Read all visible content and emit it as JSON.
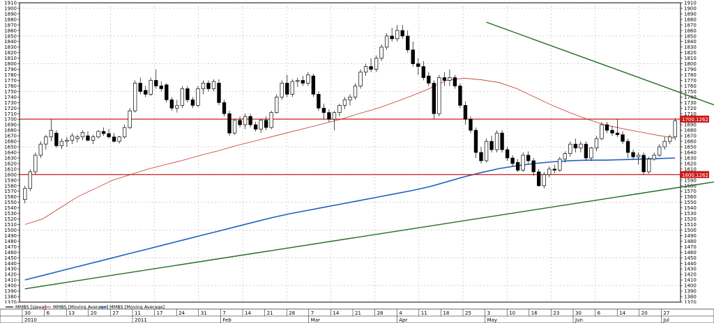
{
  "chart_data": {
    "type": "candlestick",
    "instrument": "MMBS",
    "y_range": [
      1370,
      1910
    ],
    "y_ticks": [
      1370,
      1380,
      1390,
      1400,
      1410,
      1420,
      1430,
      1440,
      1450,
      1460,
      1470,
      1480,
      1490,
      1500,
      1510,
      1520,
      1530,
      1540,
      1550,
      1560,
      1570,
      1580,
      1590,
      1600,
      1610,
      1620,
      1630,
      1640,
      1650,
      1660,
      1670,
      1680,
      1690,
      1700,
      1710,
      1720,
      1730,
      1740,
      1750,
      1760,
      1770,
      1780,
      1790,
      1800,
      1810,
      1820,
      1830,
      1840,
      1850,
      1860,
      1870,
      1880,
      1890,
      1900,
      1910
    ],
    "x_day_labels": [
      "30",
      "6",
      "13",
      "20",
      "27",
      "11",
      "17",
      "24",
      "31",
      "7",
      "14",
      "21",
      "28",
      "7",
      "14",
      "21",
      "28",
      "4",
      "11",
      "18",
      "25",
      "3",
      "10",
      "16",
      "23",
      "30",
      "6",
      "14",
      "20",
      "27"
    ],
    "month_labels": [
      "2010",
      "2011",
      "Feb",
      "Mar",
      "Apr",
      "May",
      "Jun",
      "Jul"
    ],
    "legend": [
      {
        "label": "MMBS [Цена]",
        "color": "#000000"
      },
      {
        "label": "MMBS [Moving Average]",
        "color": "#c0392b"
      },
      {
        "label": "MMBS [Moving Average]",
        "color": "#1f5fbf"
      }
    ],
    "candles": [
      {
        "o": 1555,
        "h": 1580,
        "l": 1548,
        "c": 1575
      },
      {
        "o": 1575,
        "h": 1610,
        "l": 1570,
        "c": 1605
      },
      {
        "o": 1605,
        "h": 1640,
        "l": 1600,
        "c": 1635
      },
      {
        "o": 1635,
        "h": 1660,
        "l": 1630,
        "c": 1655
      },
      {
        "o": 1655,
        "h": 1672,
        "l": 1645,
        "c": 1668
      },
      {
        "o": 1668,
        "h": 1700,
        "l": 1660,
        "c": 1680
      },
      {
        "o": 1675,
        "h": 1680,
        "l": 1648,
        "c": 1652
      },
      {
        "o": 1652,
        "h": 1665,
        "l": 1646,
        "c": 1660
      },
      {
        "o": 1660,
        "h": 1668,
        "l": 1650,
        "c": 1662
      },
      {
        "o": 1662,
        "h": 1675,
        "l": 1655,
        "c": 1670
      },
      {
        "o": 1665,
        "h": 1672,
        "l": 1658,
        "c": 1668
      },
      {
        "o": 1668,
        "h": 1680,
        "l": 1662,
        "c": 1676
      },
      {
        "o": 1670,
        "h": 1678,
        "l": 1660,
        "c": 1662
      },
      {
        "o": 1662,
        "h": 1672,
        "l": 1655,
        "c": 1668
      },
      {
        "o": 1668,
        "h": 1680,
        "l": 1665,
        "c": 1678
      },
      {
        "o": 1678,
        "h": 1685,
        "l": 1670,
        "c": 1674
      },
      {
        "o": 1674,
        "h": 1682,
        "l": 1665,
        "c": 1668
      },
      {
        "o": 1668,
        "h": 1675,
        "l": 1658,
        "c": 1660
      },
      {
        "o": 1660,
        "h": 1670,
        "l": 1656,
        "c": 1668
      },
      {
        "o": 1668,
        "h": 1690,
        "l": 1665,
        "c": 1685
      },
      {
        "o": 1685,
        "h": 1720,
        "l": 1682,
        "c": 1715
      },
      {
        "o": 1715,
        "h": 1770,
        "l": 1712,
        "c": 1765
      },
      {
        "o": 1765,
        "h": 1775,
        "l": 1745,
        "c": 1750
      },
      {
        "o": 1752,
        "h": 1760,
        "l": 1740,
        "c": 1745
      },
      {
        "o": 1745,
        "h": 1775,
        "l": 1742,
        "c": 1770
      },
      {
        "o": 1770,
        "h": 1790,
        "l": 1755,
        "c": 1760
      },
      {
        "o": 1760,
        "h": 1768,
        "l": 1750,
        "c": 1755
      },
      {
        "o": 1762,
        "h": 1765,
        "l": 1730,
        "c": 1735
      },
      {
        "o": 1735,
        "h": 1740,
        "l": 1715,
        "c": 1720
      },
      {
        "o": 1720,
        "h": 1735,
        "l": 1712,
        "c": 1725
      },
      {
        "o": 1725,
        "h": 1760,
        "l": 1720,
        "c": 1755
      },
      {
        "o": 1755,
        "h": 1760,
        "l": 1730,
        "c": 1735
      },
      {
        "o": 1735,
        "h": 1740,
        "l": 1720,
        "c": 1725
      },
      {
        "o": 1725,
        "h": 1760,
        "l": 1722,
        "c": 1755
      },
      {
        "o": 1755,
        "h": 1770,
        "l": 1745,
        "c": 1765
      },
      {
        "o": 1765,
        "h": 1770,
        "l": 1750,
        "c": 1755
      },
      {
        "o": 1755,
        "h": 1772,
        "l": 1750,
        "c": 1768
      },
      {
        "o": 1765,
        "h": 1772,
        "l": 1725,
        "c": 1730
      },
      {
        "o": 1730,
        "h": 1735,
        "l": 1705,
        "c": 1710
      },
      {
        "o": 1710,
        "h": 1715,
        "l": 1670,
        "c": 1675
      },
      {
        "o": 1675,
        "h": 1700,
        "l": 1672,
        "c": 1698
      },
      {
        "o": 1698,
        "h": 1705,
        "l": 1685,
        "c": 1690
      },
      {
        "o": 1690,
        "h": 1710,
        "l": 1682,
        "c": 1705
      },
      {
        "o": 1705,
        "h": 1710,
        "l": 1685,
        "c": 1690
      },
      {
        "o": 1690,
        "h": 1695,
        "l": 1678,
        "c": 1682
      },
      {
        "o": 1682,
        "h": 1700,
        "l": 1675,
        "c": 1698
      },
      {
        "o": 1698,
        "h": 1705,
        "l": 1680,
        "c": 1685
      },
      {
        "o": 1685,
        "h": 1715,
        "l": 1682,
        "c": 1712
      },
      {
        "o": 1712,
        "h": 1745,
        "l": 1710,
        "c": 1740
      },
      {
        "o": 1740,
        "h": 1770,
        "l": 1735,
        "c": 1765
      },
      {
        "o": 1765,
        "h": 1780,
        "l": 1740,
        "c": 1745
      },
      {
        "o": 1745,
        "h": 1772,
        "l": 1740,
        "c": 1768
      },
      {
        "o": 1768,
        "h": 1775,
        "l": 1758,
        "c": 1770
      },
      {
        "o": 1770,
        "h": 1778,
        "l": 1760,
        "c": 1765
      },
      {
        "o": 1765,
        "h": 1785,
        "l": 1760,
        "c": 1780
      },
      {
        "o": 1778,
        "h": 1782,
        "l": 1740,
        "c": 1745
      },
      {
        "o": 1745,
        "h": 1750,
        "l": 1715,
        "c": 1720
      },
      {
        "o": 1720,
        "h": 1728,
        "l": 1700,
        "c": 1712
      },
      {
        "o": 1712,
        "h": 1718,
        "l": 1695,
        "c": 1700
      },
      {
        "o": 1700,
        "h": 1715,
        "l": 1680,
        "c": 1712
      },
      {
        "o": 1712,
        "h": 1728,
        "l": 1705,
        "c": 1725
      },
      {
        "o": 1725,
        "h": 1740,
        "l": 1718,
        "c": 1735
      },
      {
        "o": 1735,
        "h": 1745,
        "l": 1725,
        "c": 1740
      },
      {
        "o": 1740,
        "h": 1765,
        "l": 1735,
        "c": 1760
      },
      {
        "o": 1760,
        "h": 1790,
        "l": 1755,
        "c": 1785
      },
      {
        "o": 1785,
        "h": 1800,
        "l": 1778,
        "c": 1795
      },
      {
        "o": 1795,
        "h": 1810,
        "l": 1785,
        "c": 1790
      },
      {
        "o": 1790,
        "h": 1815,
        "l": 1785,
        "c": 1810
      },
      {
        "o": 1810,
        "h": 1835,
        "l": 1805,
        "c": 1830
      },
      {
        "o": 1830,
        "h": 1855,
        "l": 1825,
        "c": 1850
      },
      {
        "o": 1850,
        "h": 1865,
        "l": 1840,
        "c": 1845
      },
      {
        "o": 1845,
        "h": 1870,
        "l": 1840,
        "c": 1860
      },
      {
        "o": 1860,
        "h": 1870,
        "l": 1845,
        "c": 1850
      },
      {
        "o": 1850,
        "h": 1860,
        "l": 1820,
        "c": 1825
      },
      {
        "o": 1825,
        "h": 1840,
        "l": 1795,
        "c": 1800
      },
      {
        "o": 1800,
        "h": 1810,
        "l": 1780,
        "c": 1795
      },
      {
        "o": 1795,
        "h": 1805,
        "l": 1770,
        "c": 1775
      },
      {
        "o": 1778,
        "h": 1785,
        "l": 1760,
        "c": 1765
      },
      {
        "o": 1765,
        "h": 1770,
        "l": 1700,
        "c": 1710
      },
      {
        "o": 1710,
        "h": 1780,
        "l": 1705,
        "c": 1775
      },
      {
        "o": 1775,
        "h": 1785,
        "l": 1760,
        "c": 1770
      },
      {
        "o": 1770,
        "h": 1790,
        "l": 1760,
        "c": 1775
      },
      {
        "o": 1775,
        "h": 1780,
        "l": 1755,
        "c": 1760
      },
      {
        "o": 1760,
        "h": 1765,
        "l": 1720,
        "c": 1725
      },
      {
        "o": 1725,
        "h": 1732,
        "l": 1690,
        "c": 1700
      },
      {
        "o": 1700,
        "h": 1705,
        "l": 1675,
        "c": 1680
      },
      {
        "o": 1680,
        "h": 1685,
        "l": 1630,
        "c": 1640
      },
      {
        "o": 1640,
        "h": 1650,
        "l": 1620,
        "c": 1625
      },
      {
        "o": 1625,
        "h": 1665,
        "l": 1622,
        "c": 1660
      },
      {
        "o": 1660,
        "h": 1670,
        "l": 1640,
        "c": 1645
      },
      {
        "o": 1645,
        "h": 1680,
        "l": 1640,
        "c": 1675
      },
      {
        "o": 1675,
        "h": 1680,
        "l": 1640,
        "c": 1645
      },
      {
        "o": 1645,
        "h": 1650,
        "l": 1625,
        "c": 1630
      },
      {
        "o": 1630,
        "h": 1635,
        "l": 1615,
        "c": 1620
      },
      {
        "o": 1622,
        "h": 1628,
        "l": 1605,
        "c": 1608
      },
      {
        "o": 1608,
        "h": 1640,
        "l": 1605,
        "c": 1635
      },
      {
        "o": 1635,
        "h": 1642,
        "l": 1620,
        "c": 1625
      },
      {
        "o": 1625,
        "h": 1630,
        "l": 1598,
        "c": 1605
      },
      {
        "o": 1605,
        "h": 1610,
        "l": 1578,
        "c": 1580
      },
      {
        "o": 1580,
        "h": 1605,
        "l": 1575,
        "c": 1600
      },
      {
        "o": 1600,
        "h": 1615,
        "l": 1595,
        "c": 1610
      },
      {
        "o": 1610,
        "h": 1618,
        "l": 1602,
        "c": 1608
      },
      {
        "o": 1608,
        "h": 1632,
        "l": 1605,
        "c": 1628
      },
      {
        "o": 1628,
        "h": 1642,
        "l": 1622,
        "c": 1638
      },
      {
        "o": 1638,
        "h": 1660,
        "l": 1632,
        "c": 1655
      },
      {
        "o": 1655,
        "h": 1665,
        "l": 1640,
        "c": 1648
      },
      {
        "o": 1648,
        "h": 1660,
        "l": 1640,
        "c": 1655
      },
      {
        "o": 1655,
        "h": 1660,
        "l": 1625,
        "c": 1630
      },
      {
        "o": 1630,
        "h": 1650,
        "l": 1625,
        "c": 1648
      },
      {
        "o": 1648,
        "h": 1670,
        "l": 1642,
        "c": 1665
      },
      {
        "o": 1665,
        "h": 1695,
        "l": 1662,
        "c": 1690
      },
      {
        "o": 1690,
        "h": 1695,
        "l": 1675,
        "c": 1680
      },
      {
        "o": 1680,
        "h": 1688,
        "l": 1670,
        "c": 1675
      },
      {
        "o": 1675,
        "h": 1700,
        "l": 1668,
        "c": 1672
      },
      {
        "o": 1672,
        "h": 1678,
        "l": 1655,
        "c": 1660
      },
      {
        "o": 1660,
        "h": 1665,
        "l": 1630,
        "c": 1640
      },
      {
        "o": 1640,
        "h": 1645,
        "l": 1628,
        "c": 1632
      },
      {
        "o": 1632,
        "h": 1640,
        "l": 1618,
        "c": 1635
      },
      {
        "o": 1635,
        "h": 1640,
        "l": 1600,
        "c": 1605
      },
      {
        "o": 1605,
        "h": 1632,
        "l": 1602,
        "c": 1628
      },
      {
        "o": 1628,
        "h": 1640,
        "l": 1625,
        "c": 1635
      },
      {
        "o": 1635,
        "h": 1655,
        "l": 1632,
        "c": 1650
      },
      {
        "o": 1650,
        "h": 1668,
        "l": 1645,
        "c": 1660
      },
      {
        "o": 1660,
        "h": 1672,
        "l": 1655,
        "c": 1668
      },
      {
        "o": 1668,
        "h": 1702,
        "l": 1662,
        "c": 1697
      }
    ],
    "ma_red": [
      1510,
      1520,
      1540,
      1560,
      1575,
      1590,
      1600,
      1610,
      1618,
      1626,
      1635,
      1643,
      1652,
      1660,
      1668,
      1676,
      1684,
      1692,
      1700,
      1710,
      1719,
      1730,
      1742,
      1755,
      1770,
      1774,
      1771,
      1766,
      1755,
      1740,
      1725,
      1712,
      1700,
      1690,
      1683,
      1677,
      1671,
      1666
    ],
    "ma_blue": [
      1410,
      1418,
      1426,
      1434,
      1442,
      1450,
      1458,
      1466,
      1474,
      1482,
      1490,
      1498,
      1506,
      1514,
      1522,
      1529,
      1535,
      1541,
      1547,
      1553,
      1559,
      1565,
      1571,
      1578,
      1587,
      1596,
      1604,
      1611,
      1616,
      1620,
      1623,
      1625,
      1626,
      1626,
      1627,
      1628,
      1629,
      1630
    ],
    "resistance_trend": {
      "from": {
        "candle": 88,
        "price": 1875
      },
      "to": {
        "candle": 150,
        "price": 1662
      }
    },
    "support_trend": {
      "from": {
        "candle": 0,
        "price": 1394
      },
      "to": {
        "candle": 150,
        "price": 1614
      }
    },
    "horizontal_levels": [
      {
        "price": 1700.1262,
        "label": "1700.1262"
      },
      {
        "price": 1600.1262,
        "label": "1600.1262"
      }
    ]
  }
}
